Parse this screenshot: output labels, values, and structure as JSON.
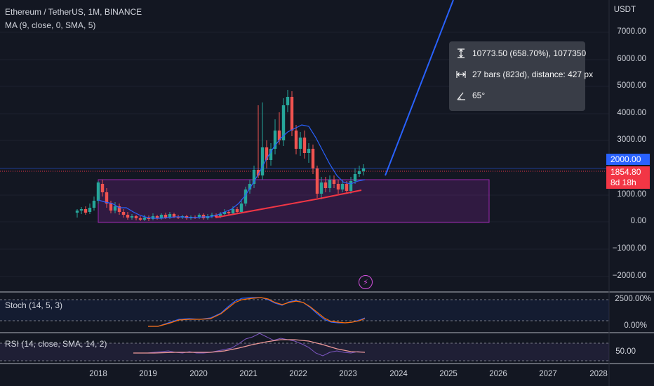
{
  "symbol": {
    "title": "Ethereum / TetherUS, 1M, BINANCE",
    "ma_label": "MA (9, close, 0, SMA, 5)"
  },
  "axis": {
    "currency": "USDT",
    "price_labels": [
      "7000.00",
      "6000.00",
      "5000.00",
      "4000.00",
      "3000.00",
      "1000.00",
      "0.00",
      "−1000.00",
      "−2000.00"
    ],
    "time_labels": [
      "2018",
      "2019",
      "2020",
      "2021",
      "2022",
      "2023",
      "2024",
      "2025",
      "2026",
      "2027",
      "2028"
    ],
    "stoch_labels": [
      "2500.00%",
      "0.00%"
    ],
    "rsi_label": "50.00"
  },
  "price_tags": {
    "level": "2000.00",
    "last_price": "1854.80",
    "countdown": "8d 18h"
  },
  "measure": {
    "price_range": "10773.50 (658.70%), 1077350",
    "bars": "27 bars (823d), distance: 427 px",
    "angle": "65°"
  },
  "indicators": {
    "stoch_label": "Stoch (14, 5, 3)",
    "rsi_label": "RSI (14, close, SMA, 14, 2)"
  },
  "colors": {
    "background": "#131722",
    "up": "#26a69a",
    "down": "#ef5350",
    "ma_line": "#2962ff",
    "trend_line": "#f23645",
    "projection": "#2962ff",
    "range_box": "#9c27b0",
    "stoch_k": "#2962ff",
    "stoch_d": "#ff6d00",
    "rsi": "#7e57c2"
  },
  "icons": {
    "measure_price": "vertical-range-icon",
    "measure_bars": "horizontal-range-icon",
    "measure_angle": "angle-icon",
    "badge": "lightning-icon"
  }
}
